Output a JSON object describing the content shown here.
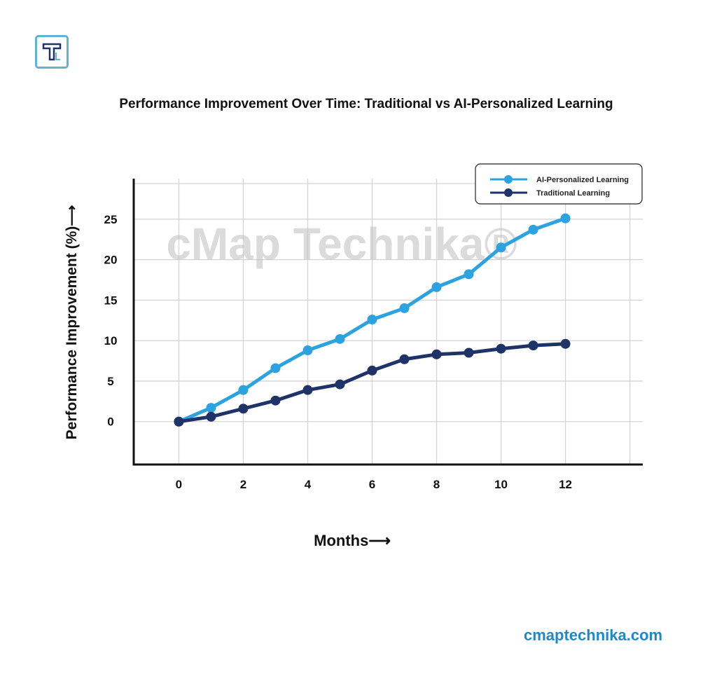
{
  "chart_data": {
    "type": "line",
    "title": "Performance Improvement Over Time: Traditional vs AI-Personalized Learning",
    "xlabel": "Months⟶",
    "ylabel": "Performance Improvement (%)⟶",
    "x": [
      0,
      1,
      2,
      3,
      4,
      5,
      6,
      7,
      8,
      9,
      10,
      11,
      12
    ],
    "xticks": [
      "0",
      "2",
      "4",
      "6",
      "8",
      "10",
      "12"
    ],
    "yticks": [
      "0",
      "5",
      "10",
      "15",
      "20",
      "25"
    ],
    "xlim": [
      -1.4,
      14.4
    ],
    "ylim": [
      -5.3,
      30
    ],
    "grid": true,
    "legend": "top-right",
    "series": [
      {
        "name": "AI-Personalized Learning",
        "color": "#2aa3e0",
        "values": [
          0,
          1.7,
          3.9,
          6.6,
          8.8,
          10.2,
          12.6,
          14.0,
          16.6,
          18.2,
          21.5,
          23.7,
          25.1
        ]
      },
      {
        "name": "Traditional Learning",
        "color": "#1e3468",
        "values": [
          0,
          0.6,
          1.6,
          2.6,
          3.9,
          4.6,
          6.3,
          7.7,
          8.3,
          8.5,
          9.0,
          9.4,
          9.6
        ]
      }
    ]
  },
  "watermark": "cMap Technika®",
  "footer": "cmaptechnika.com",
  "logo_text": "T"
}
